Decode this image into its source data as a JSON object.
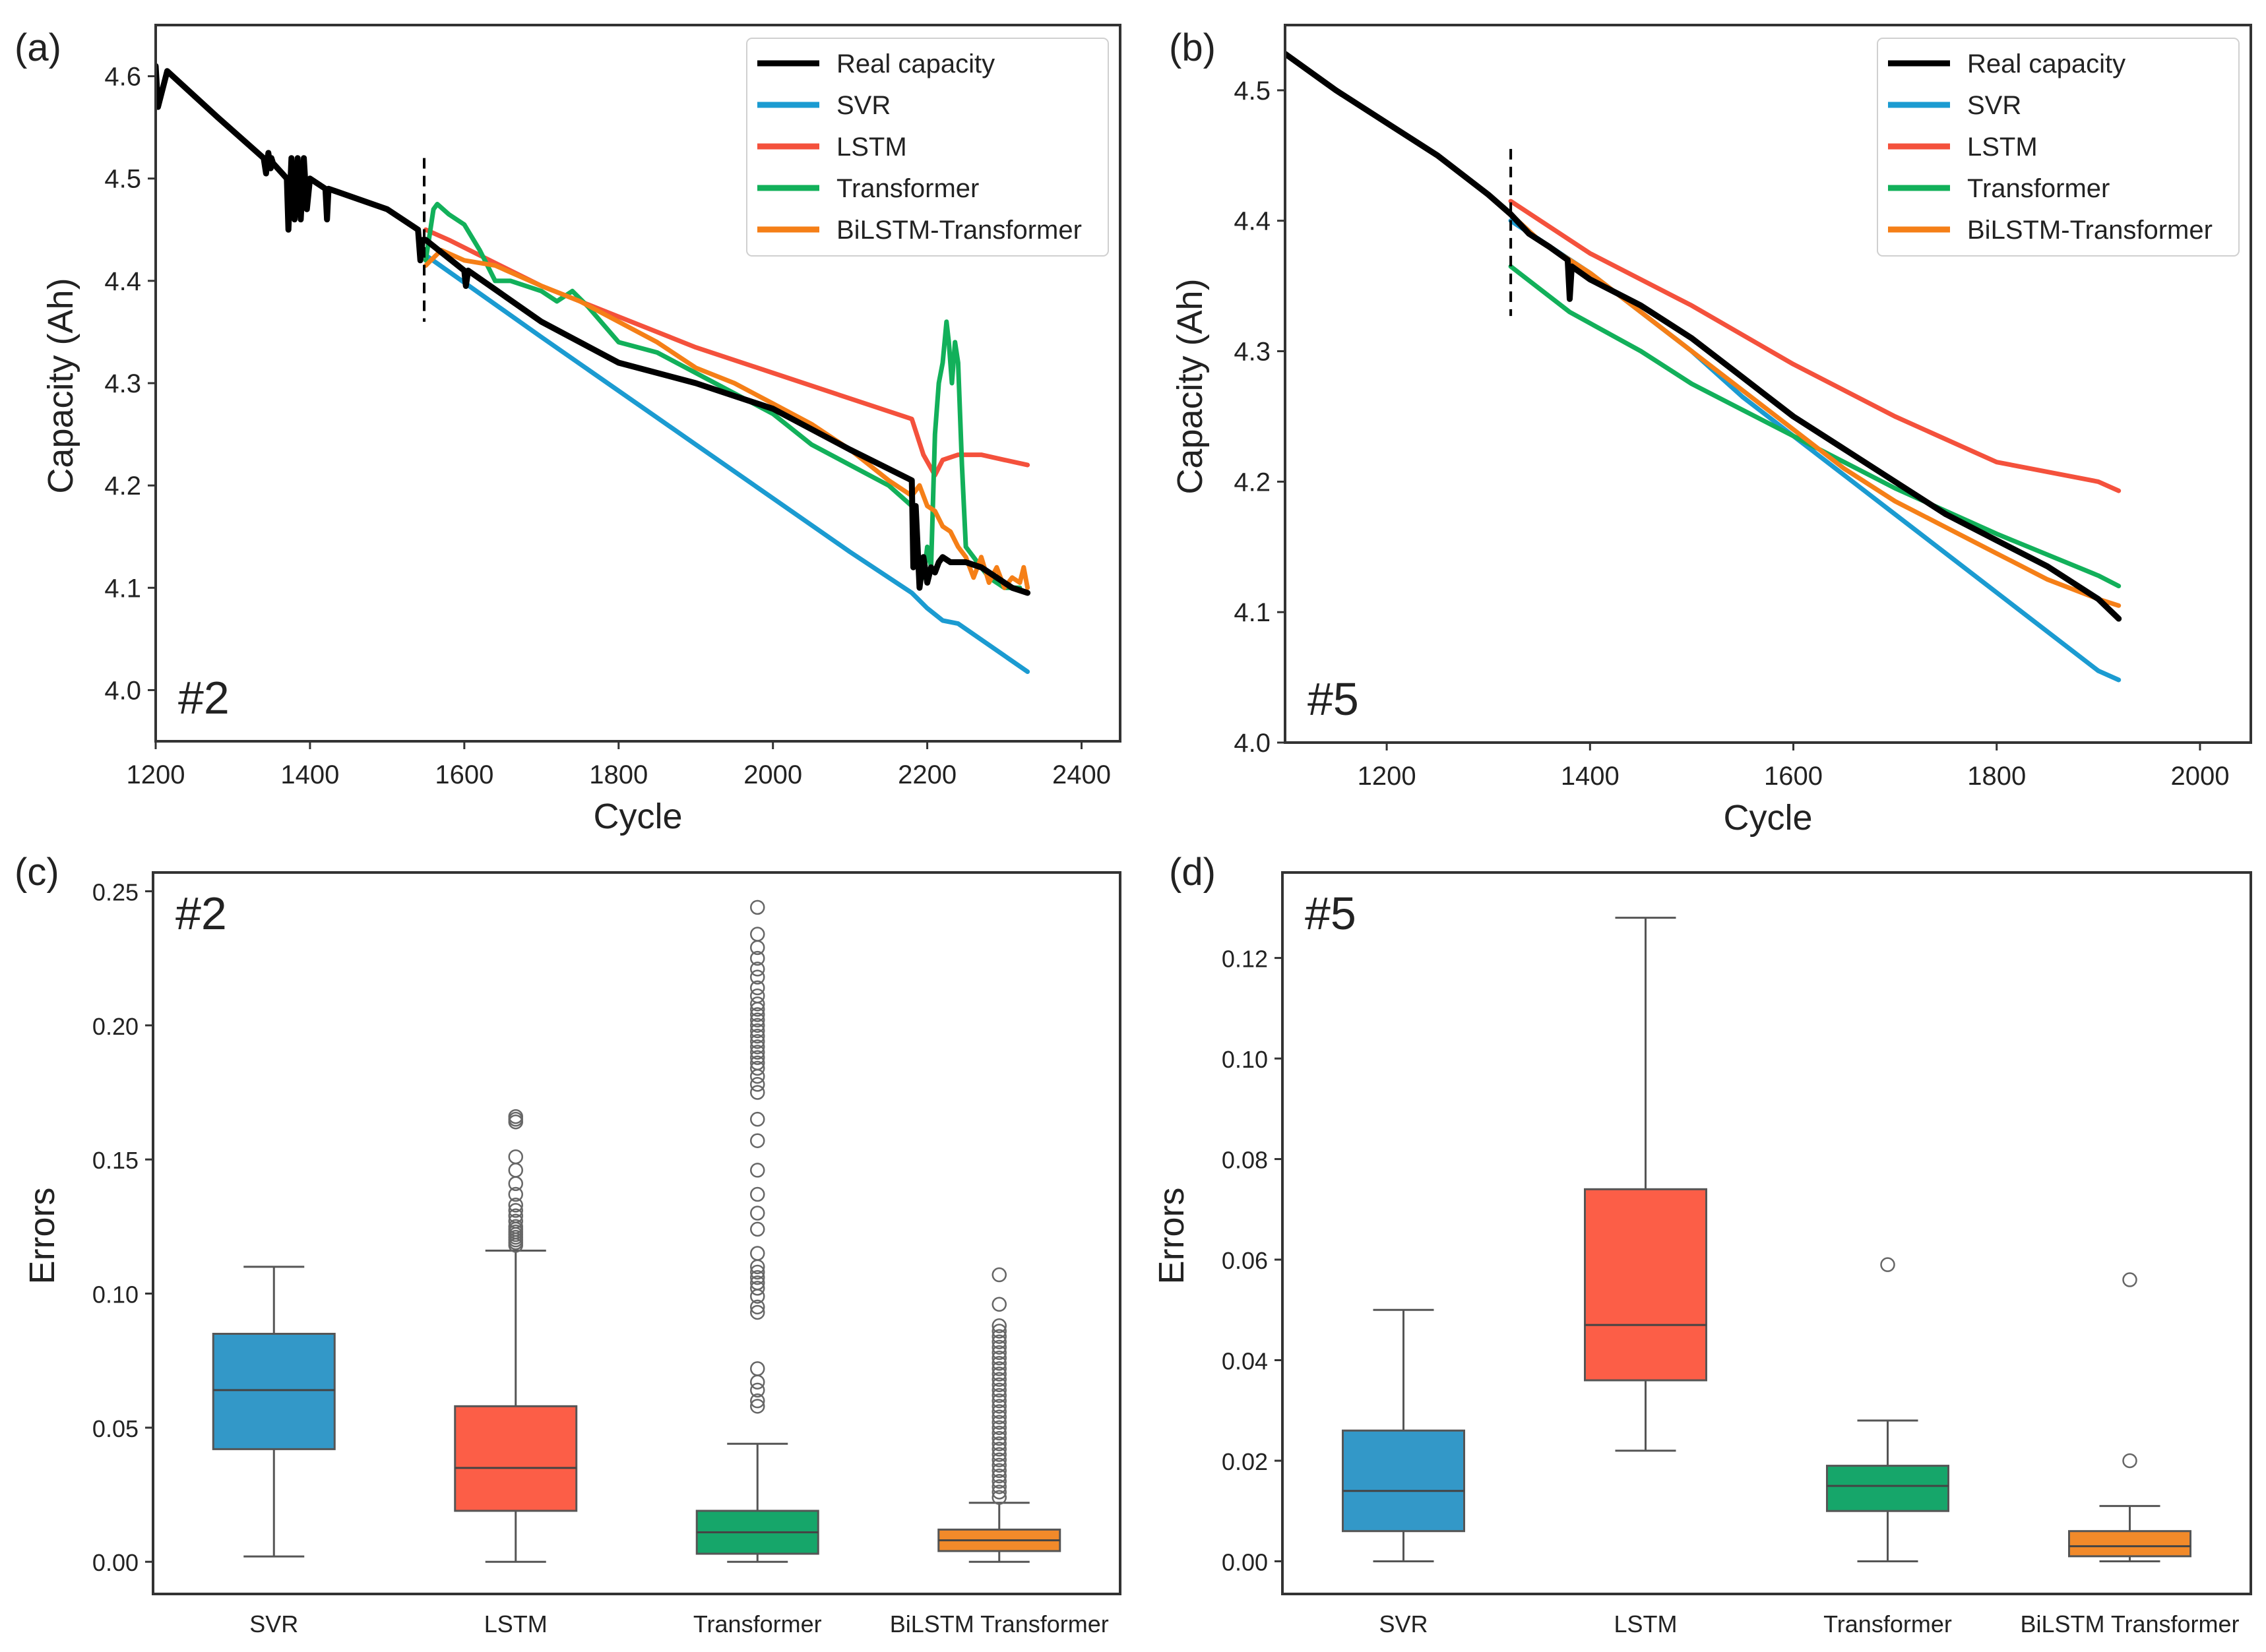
{
  "colors": {
    "real": "#000000",
    "svr": "#1b9bd1",
    "lstm": "#f4513c",
    "transformer": "#12b05a",
    "bilstm": "#f57f17",
    "box_svr": "#3398c8",
    "box_lstm": "#fc5e47",
    "box_transformer": "#16a66a",
    "box_bilstm": "#f28a2a",
    "frame": "#333333"
  },
  "chart_data": [
    {
      "id": "a",
      "panel_label": "(a)",
      "cell_label": "#2",
      "type": "line",
      "xlabel": "Cycle",
      "ylabel": "Capacity (Ah)",
      "xlim": [
        1200,
        2450
      ],
      "ylim": [
        3.95,
        4.65
      ],
      "xticks": [
        1200,
        1400,
        1600,
        1800,
        2000,
        2200,
        2400
      ],
      "yticks": [
        4.0,
        4.1,
        4.2,
        4.3,
        4.4,
        4.5,
        4.6
      ],
      "ytick_labels": [
        "4.0",
        "4.1",
        "4.2",
        "4.3",
        "4.4",
        "4.5",
        "4.6"
      ],
      "split_x": 1548,
      "split_y": [
        4.36,
        4.52
      ],
      "legend_position": "top-right",
      "series": [
        {
          "key": "real",
          "name": "Real capacity",
          "x": [
            1200,
            1203,
            1215,
            1280,
            1340,
            1343,
            1346,
            1349,
            1350,
            1352,
            1370,
            1372,
            1376,
            1380,
            1384,
            1388,
            1392,
            1396,
            1400,
            1420,
            1422,
            1424,
            1500,
            1540,
            1543,
            1546,
            1550,
            1600,
            1602,
            1605,
            1700,
            1800,
            1900,
            2000,
            2100,
            2180,
            2182,
            2185,
            2190,
            2195,
            2200,
            2205,
            2210,
            2215,
            2220,
            2230,
            2250,
            2270,
            2290,
            2310,
            2330
          ],
          "y": [
            4.61,
            4.57,
            4.605,
            4.56,
            4.52,
            4.505,
            4.525,
            4.51,
            4.52,
            4.515,
            4.5,
            4.45,
            4.52,
            4.46,
            4.52,
            4.46,
            4.52,
            4.47,
            4.5,
            4.49,
            4.46,
            4.49,
            4.47,
            4.45,
            4.42,
            4.44,
            4.44,
            4.41,
            4.395,
            4.41,
            4.36,
            4.32,
            4.3,
            4.275,
            4.235,
            4.205,
            4.12,
            4.18,
            4.1,
            4.13,
            4.105,
            4.12,
            4.115,
            4.125,
            4.13,
            4.125,
            4.125,
            4.12,
            4.11,
            4.1,
            4.095
          ]
        },
        {
          "key": "svr",
          "name": "SVR",
          "x": [
            1550,
            1700,
            1900,
            2100,
            2180,
            2200,
            2220,
            2240,
            2330
          ],
          "y": [
            4.425,
            4.345,
            4.24,
            4.135,
            4.095,
            4.08,
            4.068,
            4.065,
            4.018
          ]
        },
        {
          "key": "lstm",
          "name": "LSTM",
          "x": [
            1550,
            1580,
            1620,
            1700,
            1800,
            1900,
            2000,
            2100,
            2180,
            2195,
            2210,
            2220,
            2240,
            2270,
            2300,
            2330
          ],
          "y": [
            4.45,
            4.44,
            4.425,
            4.395,
            4.365,
            4.335,
            4.31,
            4.285,
            4.265,
            4.23,
            4.21,
            4.225,
            4.23,
            4.23,
            4.225,
            4.22
          ]
        },
        {
          "key": "transformer",
          "name": "Transformer",
          "x": [
            1550,
            1560,
            1565,
            1580,
            1600,
            1620,
            1640,
            1660,
            1700,
            1720,
            1740,
            1760,
            1800,
            1850,
            1900,
            1950,
            2000,
            2050,
            2100,
            2150,
            2180,
            2185,
            2190,
            2195,
            2200,
            2205,
            2210,
            2215,
            2220,
            2225,
            2228,
            2232,
            2236,
            2240,
            2245,
            2250,
            2260,
            2270,
            2280,
            2300,
            2320
          ],
          "y": [
            4.42,
            4.47,
            4.475,
            4.465,
            4.455,
            4.43,
            4.4,
            4.4,
            4.39,
            4.38,
            4.39,
            4.375,
            4.34,
            4.33,
            4.31,
            4.29,
            4.27,
            4.24,
            4.22,
            4.2,
            4.18,
            4.15,
            4.12,
            4.11,
            4.14,
            4.12,
            4.25,
            4.3,
            4.32,
            4.36,
            4.34,
            4.3,
            4.34,
            4.32,
            4.22,
            4.14,
            4.13,
            4.12,
            4.11,
            4.1,
            4.1
          ]
        },
        {
          "key": "bilstm",
          "name": "BiLSTM-Transformer",
          "x": [
            1550,
            1570,
            1600,
            1640,
            1700,
            1750,
            1800,
            1850,
            1900,
            1950,
            2000,
            2050,
            2100,
            2150,
            2180,
            2190,
            2200,
            2210,
            2220,
            2230,
            2240,
            2250,
            2260,
            2270,
            2280,
            2290,
            2300,
            2310,
            2320,
            2325,
            2330
          ],
          "y": [
            4.415,
            4.43,
            4.42,
            4.415,
            4.395,
            4.38,
            4.36,
            4.34,
            4.315,
            4.3,
            4.28,
            4.26,
            4.235,
            4.205,
            4.19,
            4.2,
            4.18,
            4.175,
            4.16,
            4.155,
            4.14,
            4.13,
            4.11,
            4.13,
            4.105,
            4.12,
            4.1,
            4.11,
            4.105,
            4.12,
            4.1
          ]
        }
      ]
    },
    {
      "id": "b",
      "panel_label": "(b)",
      "cell_label": "#5",
      "type": "line",
      "xlabel": "Cycle",
      "ylabel": "Capacity (Ah)",
      "xlim": [
        1100,
        2050
      ],
      "ylim": [
        4.0,
        4.55
      ],
      "xticks": [
        1200,
        1400,
        1600,
        1800,
        2000
      ],
      "yticks": [
        4.0,
        4.1,
        4.2,
        4.3,
        4.4,
        4.5
      ],
      "ytick_labels": [
        "4.0",
        "4.1",
        "4.2",
        "4.3",
        "4.4",
        "4.5"
      ],
      "split_x": 1322,
      "split_y": [
        4.327,
        4.455
      ],
      "legend_position": "top-right",
      "series": [
        {
          "key": "real",
          "name": "Real capacity",
          "x": [
            1100,
            1150,
            1200,
            1250,
            1300,
            1322,
            1340,
            1360,
            1378,
            1380,
            1382,
            1400,
            1450,
            1500,
            1550,
            1600,
            1650,
            1700,
            1750,
            1800,
            1850,
            1900,
            1920
          ],
          "y": [
            4.528,
            4.5,
            4.475,
            4.45,
            4.42,
            4.405,
            4.39,
            4.38,
            4.37,
            4.34,
            4.365,
            4.355,
            4.335,
            4.31,
            4.28,
            4.25,
            4.225,
            4.2,
            4.175,
            4.155,
            4.135,
            4.11,
            4.095
          ]
        },
        {
          "key": "svr",
          "name": "SVR",
          "x": [
            1322,
            1400,
            1500,
            1550,
            1600,
            1650,
            1700,
            1800,
            1900,
            1920
          ],
          "y": [
            4.4,
            4.36,
            4.3,
            4.265,
            4.235,
            4.205,
            4.175,
            4.115,
            4.055,
            4.048
          ]
        },
        {
          "key": "lstm",
          "name": "LSTM",
          "x": [
            1322,
            1400,
            1500,
            1600,
            1700,
            1800,
            1900,
            1920
          ],
          "y": [
            4.415,
            4.375,
            4.335,
            4.29,
            4.25,
            4.215,
            4.2,
            4.193
          ]
        },
        {
          "key": "transformer",
          "name": "Transformer",
          "x": [
            1322,
            1380,
            1450,
            1500,
            1550,
            1600,
            1650,
            1700,
            1800,
            1900,
            1920
          ],
          "y": [
            4.365,
            4.33,
            4.3,
            4.275,
            4.255,
            4.235,
            4.215,
            4.195,
            4.16,
            4.128,
            4.12
          ]
        },
        {
          "key": "bilstm",
          "name": "BiLSTM-Transformer",
          "x": [
            1322,
            1350,
            1400,
            1450,
            1500,
            1550,
            1600,
            1650,
            1700,
            1750,
            1800,
            1850,
            1900,
            1920
          ],
          "y": [
            4.405,
            4.385,
            4.36,
            4.33,
            4.3,
            4.27,
            4.24,
            4.21,
            4.185,
            4.165,
            4.145,
            4.125,
            4.11,
            4.105
          ]
        }
      ]
    },
    {
      "id": "c",
      "panel_label": "(c)",
      "cell_label": "#2",
      "type": "box",
      "xlabel": "",
      "ylabel": "Errors",
      "ylim": [
        -0.012,
        0.257
      ],
      "yticks": [
        0.0,
        0.05,
        0.1,
        0.15,
        0.2,
        0.25
      ],
      "ytick_labels": [
        "0.00",
        "0.05",
        "0.10",
        "0.15",
        "0.20",
        "0.25"
      ],
      "categories": [
        "SVR",
        "LSTM",
        "Transformer",
        "BiLSTM Transformer"
      ],
      "boxes": [
        {
          "key": "box_svr",
          "whislo": 0.002,
          "q1": 0.042,
          "med": 0.064,
          "q3": 0.085,
          "whishi": 0.11,
          "fliers": []
        },
        {
          "key": "box_lstm",
          "whislo": 0.0,
          "q1": 0.019,
          "med": 0.035,
          "q3": 0.058,
          "whishi": 0.116,
          "fliers": [
            0.118,
            0.119,
            0.12,
            0.121,
            0.122,
            0.123,
            0.124,
            0.125,
            0.127,
            0.129,
            0.131,
            0.133,
            0.137,
            0.141,
            0.146,
            0.151,
            0.164,
            0.165,
            0.166
          ]
        },
        {
          "key": "box_transformer",
          "whislo": 0.0,
          "q1": 0.003,
          "med": 0.011,
          "q3": 0.019,
          "whishi": 0.044,
          "fliers": [
            0.058,
            0.06,
            0.064,
            0.067,
            0.072,
            0.093,
            0.095,
            0.099,
            0.102,
            0.104,
            0.106,
            0.108,
            0.11,
            0.115,
            0.124,
            0.13,
            0.137,
            0.146,
            0.157,
            0.165,
            0.175,
            0.178,
            0.181,
            0.184,
            0.186,
            0.188,
            0.19,
            0.192,
            0.194,
            0.196,
            0.198,
            0.2,
            0.202,
            0.204,
            0.206,
            0.208,
            0.211,
            0.214,
            0.218,
            0.221,
            0.225,
            0.229,
            0.234,
            0.244
          ]
        },
        {
          "key": "box_bilstm",
          "whislo": 0.0,
          "q1": 0.004,
          "med": 0.008,
          "q3": 0.012,
          "whishi": 0.022,
          "fliers": [
            0.024,
            0.026,
            0.028,
            0.03,
            0.032,
            0.034,
            0.036,
            0.038,
            0.04,
            0.042,
            0.044,
            0.046,
            0.048,
            0.05,
            0.052,
            0.054,
            0.056,
            0.058,
            0.06,
            0.062,
            0.064,
            0.066,
            0.068,
            0.07,
            0.072,
            0.074,
            0.076,
            0.078,
            0.08,
            0.082,
            0.084,
            0.086,
            0.088,
            0.096,
            0.107
          ]
        }
      ]
    },
    {
      "id": "d",
      "panel_label": "(d)",
      "cell_label": "#5",
      "type": "box",
      "xlabel": "",
      "ylabel": "Errors",
      "ylim": [
        -0.0065,
        0.137
      ],
      "yticks": [
        0.0,
        0.02,
        0.04,
        0.06,
        0.08,
        0.1,
        0.12
      ],
      "ytick_labels": [
        "0.00",
        "0.02",
        "0.04",
        "0.06",
        "0.08",
        "0.10",
        "0.12"
      ],
      "categories": [
        "SVR",
        "LSTM",
        "Transformer",
        "BiLSTM Transformer"
      ],
      "boxes": [
        {
          "key": "box_svr",
          "whislo": 0.0,
          "q1": 0.006,
          "med": 0.014,
          "q3": 0.026,
          "whishi": 0.05,
          "fliers": []
        },
        {
          "key": "box_lstm",
          "whislo": 0.022,
          "q1": 0.036,
          "med": 0.047,
          "q3": 0.074,
          "whishi": 0.128,
          "fliers": []
        },
        {
          "key": "box_transformer",
          "whislo": 0.0,
          "q1": 0.01,
          "med": 0.015,
          "q3": 0.019,
          "whishi": 0.028,
          "fliers": [
            0.059
          ]
        },
        {
          "key": "box_bilstm",
          "whislo": 0.0,
          "q1": 0.001,
          "med": 0.003,
          "q3": 0.006,
          "whishi": 0.011,
          "fliers": [
            0.02,
            0.056
          ]
        }
      ]
    }
  ]
}
